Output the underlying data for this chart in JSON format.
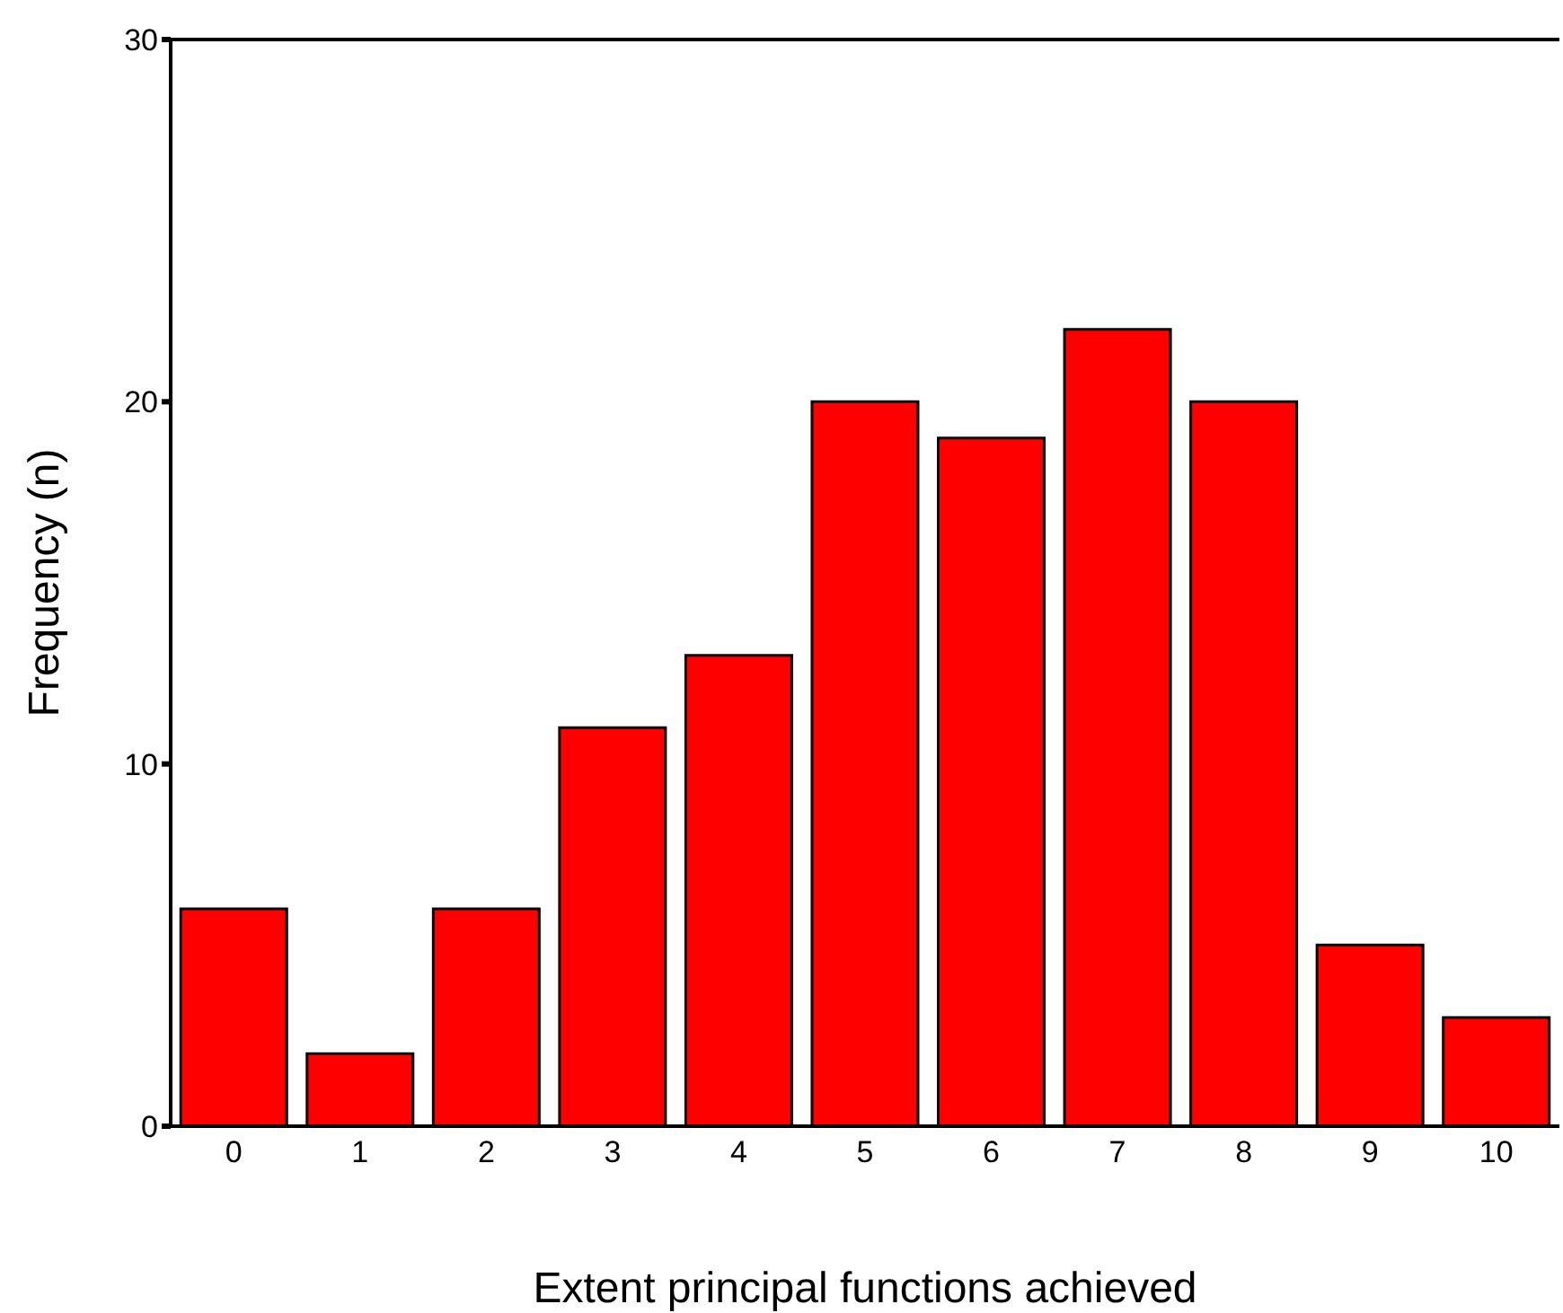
{
  "chart_data": {
    "type": "bar",
    "xlabel": "Extent principal functions achieved",
    "ylabel": "Frequency (n)",
    "categories": [
      "0",
      "1",
      "2",
      "3",
      "4",
      "5",
      "6",
      "7",
      "8",
      "9",
      "10"
    ],
    "values": [
      6,
      2,
      6,
      11,
      13,
      20,
      19,
      22,
      20,
      5,
      3
    ],
    "color": "#ff0000",
    "ylim": [
      0,
      30
    ],
    "yticks": [
      0,
      10,
      20,
      30
    ],
    "grid": false
  }
}
